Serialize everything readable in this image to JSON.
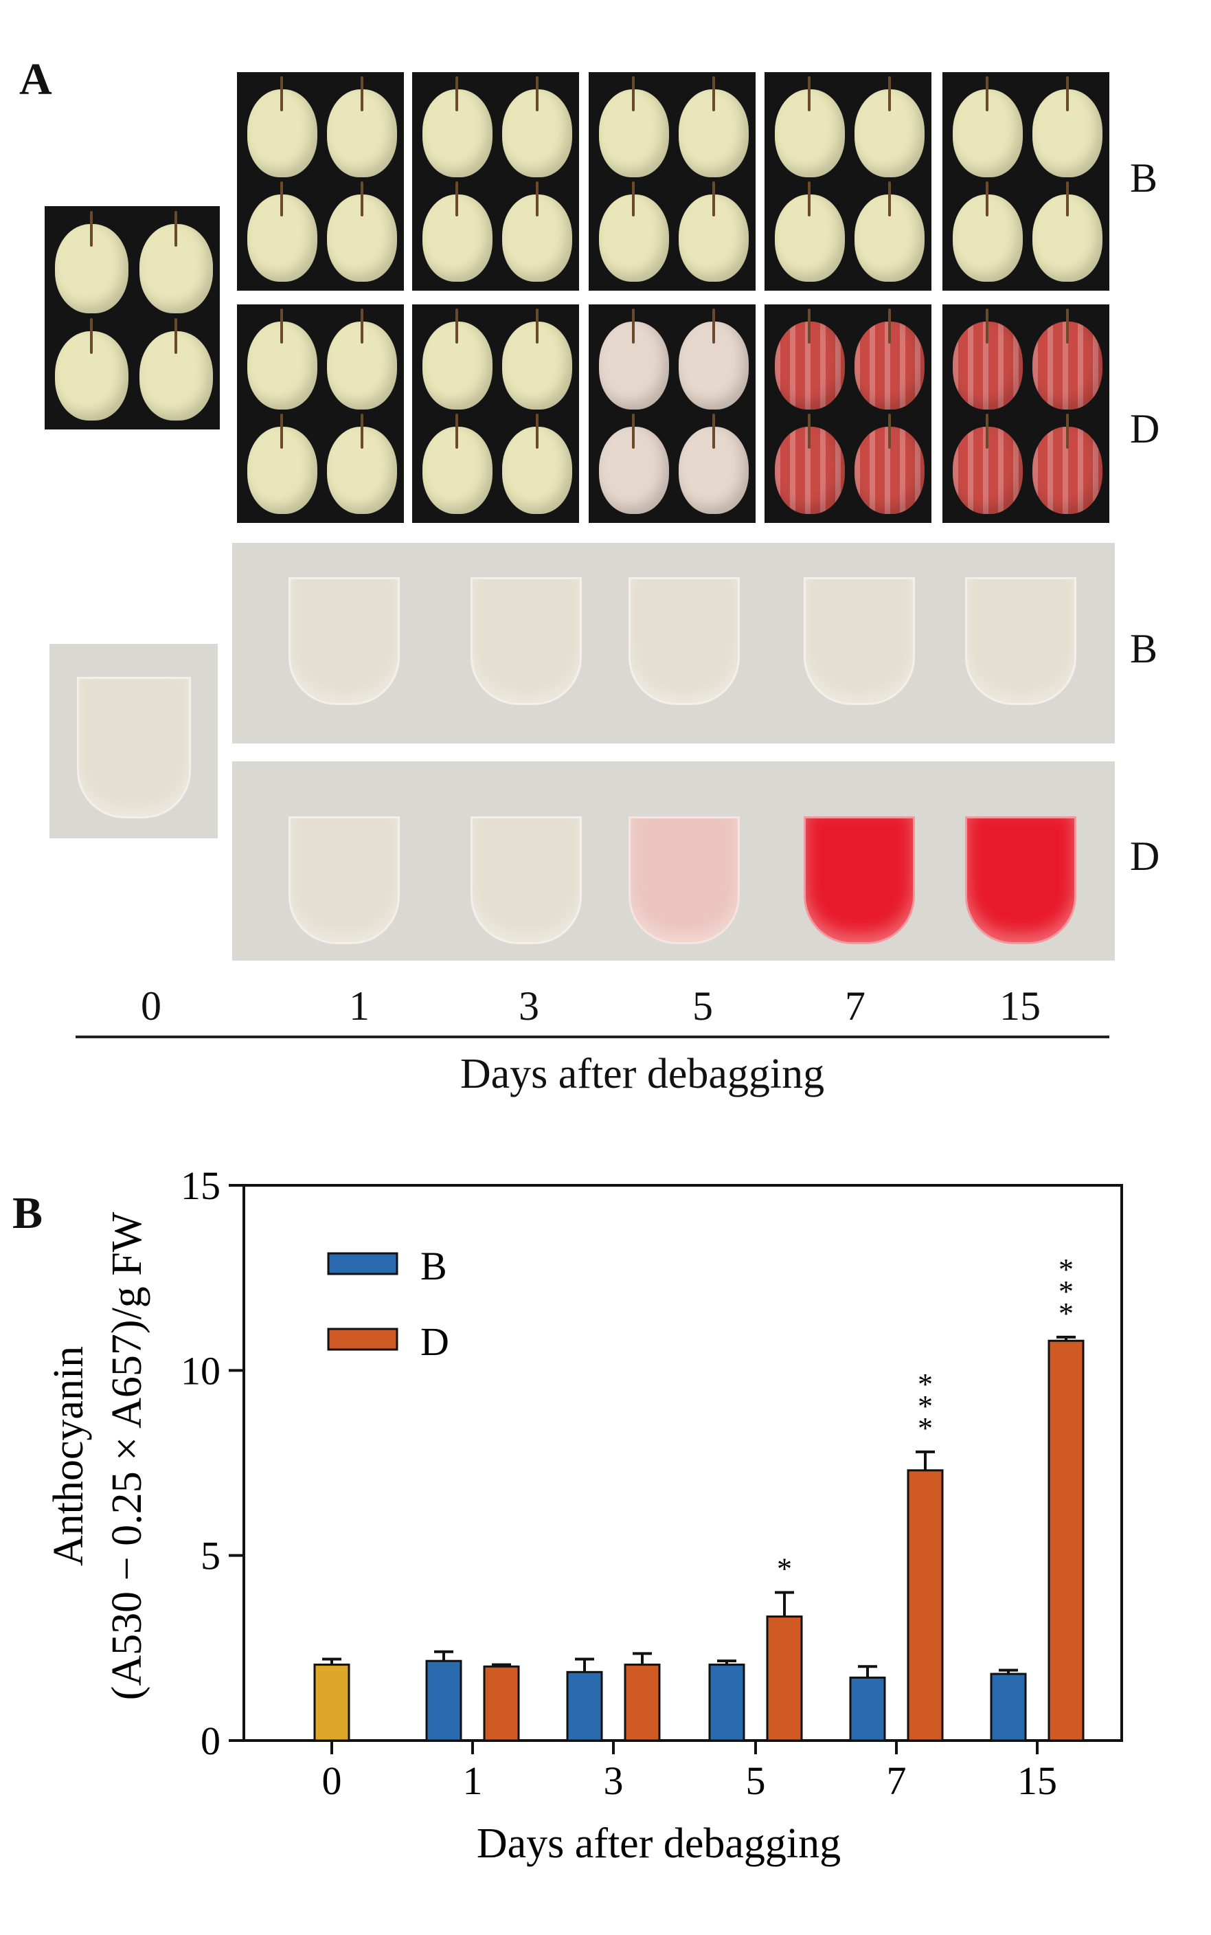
{
  "panel_a": {
    "label": "A",
    "row_labels": [
      "B",
      "D",
      "B",
      "D"
    ],
    "day_labels": [
      "0",
      "1",
      "3",
      "5",
      "7",
      "15"
    ],
    "xlabel": "Days after debagging",
    "colors": {
      "fruit_pale": "#e9e6b9",
      "fruit_d5": "#e6d7cc",
      "fruit_red": "#c94a45",
      "tube_clear": "#e4ded0",
      "tube_pink": "#ebc4bd",
      "tube_red": "#e81a2a"
    }
  },
  "panel_b": {
    "label": "B"
  },
  "chart_data": {
    "type": "bar",
    "categories": [
      "0",
      "1",
      "3",
      "5",
      "7",
      "15"
    ],
    "series": [
      {
        "name": "B",
        "color": "#2a6bb0",
        "values": [
          null,
          2.15,
          1.85,
          2.05,
          1.7,
          1.8
        ],
        "errors": [
          null,
          0.25,
          0.35,
          0.1,
          0.3,
          0.1
        ]
      },
      {
        "name": "D",
        "color": "#d05a23",
        "values": [
          null,
          2.0,
          2.05,
          3.35,
          7.3,
          10.8
        ],
        "errors": [
          null,
          0.05,
          0.3,
          0.65,
          0.5,
          0.1
        ]
      },
      {
        "name": "Day 0",
        "color": "#dda72a",
        "values": [
          2.05,
          null,
          null,
          null,
          null,
          null
        ],
        "errors": [
          0.15,
          null,
          null,
          null,
          null,
          null
        ],
        "in_legend": false
      }
    ],
    "significance": [
      "",
      "",
      "",
      "*",
      "***",
      "***"
    ],
    "title": "",
    "xlabel": "Days after debagging",
    "ylabel_line1": "Anthocyanin",
    "ylabel_line2": "(A530 − 0.25 × A657)/g FW",
    "ylim": [
      0,
      15
    ],
    "yticks": [
      0,
      5,
      10,
      15
    ],
    "legend_position": "top-left",
    "grid": false
  }
}
